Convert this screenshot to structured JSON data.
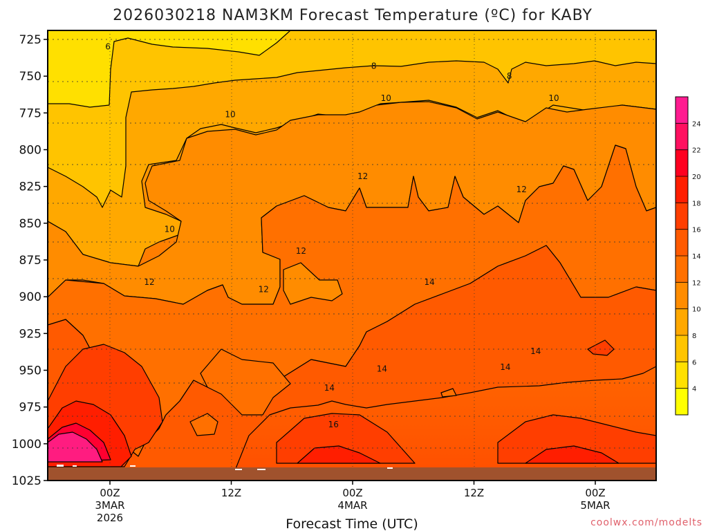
{
  "chart_data": {
    "type": "heatmap",
    "title": "2026030218 NAM3KM Forecast Temperature (ºC) for KABY",
    "xlabel": "Forecast Time (UTC)",
    "ylabel": "",
    "y_ticks": [
      "725",
      "750",
      "775",
      "800",
      "825",
      "850",
      "875",
      "900",
      "925",
      "950",
      "975",
      "1000",
      "1025"
    ],
    "y_range": [
      725,
      1025
    ],
    "x_ticks": [
      {
        "label": "00Z",
        "date": "3MAR",
        "year": "2026"
      },
      {
        "label": "12Z",
        "date": "",
        "year": ""
      },
      {
        "label": "00Z",
        "date": "4MAR",
        "year": ""
      },
      {
        "label": "12Z",
        "date": "",
        "year": ""
      },
      {
        "label": "00Z",
        "date": "5MAR",
        "year": ""
      }
    ],
    "x_range_hours": [
      -6,
      54
    ],
    "colorbar": {
      "ticks": [
        "4",
        "6",
        "8",
        "10",
        "12",
        "14",
        "16",
        "18",
        "20",
        "22",
        "24"
      ],
      "levels": [
        2,
        4,
        6,
        8,
        10,
        12,
        14,
        16,
        18,
        20,
        22,
        24,
        26
      ],
      "colors": [
        "#ffff00",
        "#ffe000",
        "#ffc400",
        "#ffa800",
        "#ff8c00",
        "#ff7000",
        "#ff5a00",
        "#ff3e00",
        "#ff1e00",
        "#ff0020",
        "#ff1060",
        "#ff1c90"
      ]
    },
    "contour_labels": [
      {
        "text": "6",
        "hour": -0.2,
        "p": 730
      },
      {
        "text": "8",
        "hour": 26.1,
        "p": 743
      },
      {
        "text": "8",
        "hour": 39.5,
        "p": 750
      },
      {
        "text": "10",
        "hour": 11.9,
        "p": 776
      },
      {
        "text": "10",
        "hour": 27.3,
        "p": 765
      },
      {
        "text": "10",
        "hour": 43.9,
        "p": 765
      },
      {
        "text": "10",
        "hour": 5.9,
        "p": 854
      },
      {
        "text": "12",
        "hour": 25.0,
        "p": 818
      },
      {
        "text": "12",
        "hour": 40.7,
        "p": 827
      },
      {
        "text": "12",
        "hour": 18.9,
        "p": 869
      },
      {
        "text": "12",
        "hour": 3.9,
        "p": 890
      },
      {
        "text": "12",
        "hour": 15.2,
        "p": 895
      },
      {
        "text": "14",
        "hour": 31.6,
        "p": 890
      },
      {
        "text": "14",
        "hour": 42.1,
        "p": 937
      },
      {
        "text": "14",
        "hour": 26.9,
        "p": 949
      },
      {
        "text": "14",
        "hour": 21.7,
        "p": 962
      },
      {
        "text": "14",
        "hour": 39.1,
        "p": 948
      },
      {
        "text": "16",
        "hour": 22.1,
        "p": 987
      }
    ],
    "ground_label": "",
    "grid": true,
    "colorbar_position": "right"
  },
  "credit": "coolwx.com/modelts"
}
